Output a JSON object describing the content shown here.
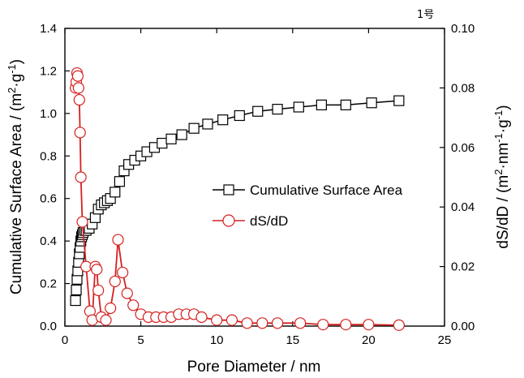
{
  "corner_label": "1号",
  "chart_data": {
    "type": "line",
    "xlabel": "Pore Diameter / nm",
    "ylabel_left_main": "Cumulative Surface Area / (m",
    "ylabel_left_sup1": "2",
    "ylabel_left_mid": "·g",
    "ylabel_left_sup2": "-1",
    "ylabel_left_end": ")",
    "ylabel_right_main": "dS/dD / (m",
    "ylabel_right_sup1": "2",
    "ylabel_right_mid": "·nm",
    "ylabel_right_sup2": "-1",
    "ylabel_right_mid2": "·g",
    "ylabel_right_sup3": "-1",
    "ylabel_right_end": ")",
    "xlim": [
      0,
      25
    ],
    "ylim_left": [
      0,
      1.4
    ],
    "ylim_right": [
      0,
      0.1
    ],
    "x_ticks": [
      "0",
      "5",
      "10",
      "15",
      "20",
      "25"
    ],
    "y_left_ticks": [
      "0.0",
      "0.2",
      "0.4",
      "0.6",
      "0.8",
      "1.0",
      "1.2",
      "1.4"
    ],
    "y_right_ticks": [
      "0.00",
      "0.02",
      "0.04",
      "0.06",
      "0.08",
      "0.10"
    ],
    "legend_position": "center-right",
    "series": [
      {
        "name": "Cumulative Surface Area",
        "axis": "left",
        "color": "#000000",
        "marker": "square",
        "x": [
          0.7,
          0.75,
          0.8,
          0.85,
          0.9,
          0.95,
          1.0,
          1.05,
          1.1,
          1.15,
          1.2,
          1.3,
          1.4,
          1.6,
          1.8,
          2.0,
          2.2,
          2.4,
          2.6,
          2.8,
          3.0,
          3.3,
          3.6,
          3.9,
          4.2,
          4.6,
          5.0,
          5.4,
          5.9,
          6.4,
          7.0,
          7.7,
          8.5,
          9.4,
          10.4,
          11.5,
          12.7,
          14.0,
          15.4,
          16.9,
          18.5,
          20.2,
          22.0
        ],
        "y": [
          0.12,
          0.17,
          0.22,
          0.26,
          0.3,
          0.34,
          0.37,
          0.4,
          0.42,
          0.43,
          0.44,
          0.45,
          0.45,
          0.46,
          0.48,
          0.51,
          0.55,
          0.57,
          0.58,
          0.59,
          0.6,
          0.63,
          0.68,
          0.73,
          0.76,
          0.78,
          0.8,
          0.82,
          0.84,
          0.86,
          0.88,
          0.9,
          0.93,
          0.95,
          0.97,
          0.99,
          1.01,
          1.02,
          1.03,
          1.04,
          1.04,
          1.05,
          1.06
        ]
      },
      {
        "name": "dS/dD",
        "axis": "right",
        "color": "#d62020",
        "marker": "circle",
        "x": [
          0.7,
          0.75,
          0.8,
          0.85,
          0.9,
          0.95,
          1.0,
          1.05,
          1.15,
          1.4,
          1.65,
          1.8,
          2.0,
          2.1,
          2.2,
          2.4,
          2.7,
          3.0,
          3.3,
          3.5,
          3.8,
          4.1,
          4.5,
          5.0,
          5.5,
          6.0,
          6.5,
          7.0,
          7.5,
          8.0,
          8.5,
          9.0,
          10.0,
          11.0,
          12.0,
          13.0,
          14.0,
          15.5,
          17.0,
          18.5,
          20.0,
          22.0
        ],
        "y": [
          0.08,
          0.082,
          0.085,
          0.084,
          0.08,
          0.076,
          0.065,
          0.05,
          0.035,
          0.02,
          0.005,
          0.002,
          0.02,
          0.019,
          0.012,
          0.003,
          0.002,
          0.006,
          0.015,
          0.029,
          0.018,
          0.011,
          0.007,
          0.004,
          0.003,
          0.003,
          0.003,
          0.003,
          0.004,
          0.004,
          0.004,
          0.003,
          0.002,
          0.002,
          0.001,
          0.001,
          0.001,
          0.001,
          0.0005,
          0.0005,
          0.0005,
          0.0003
        ]
      }
    ]
  }
}
